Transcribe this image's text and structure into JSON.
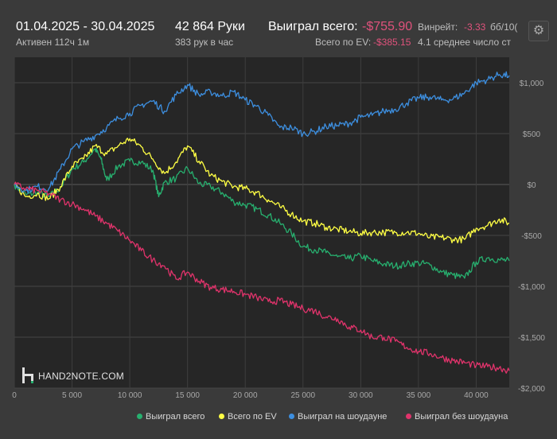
{
  "header": {
    "date_range": "01.04.2025 - 30.04.2025",
    "active": "Активен 112ч 1м",
    "hands": "42 864 Руки",
    "hands_per_hour": "383 рук в час",
    "won_total_label": "Выиграл всего:",
    "won_total_value": "-$755.90",
    "ev_label": "Всего по EV:",
    "ev_value": "-$385.15",
    "winrate_label": "Винрейт:",
    "winrate_value": "-3.33",
    "winrate_unit": "бб/10(",
    "avg_players": "4.1 среднее число ст"
  },
  "logo": {
    "text": "HAND2NOTE.COM"
  },
  "colors": {
    "won_total": "#27b06f",
    "ev": "#ffff44",
    "showdown": "#3d8fe0",
    "non_showdown": "#e0336b",
    "negative_text": "#e0527c"
  },
  "chart_data": {
    "type": "line",
    "xlim": [
      0,
      42864
    ],
    "ylim": [
      -2000,
      1250
    ],
    "x_ticks": [
      0,
      5000,
      10000,
      15000,
      20000,
      25000,
      30000,
      35000,
      40000
    ],
    "x_tick_labels": [
      "0",
      "5 000",
      "10 000",
      "15 000",
      "20 000",
      "25 000",
      "30 000",
      "35 000",
      "40 000"
    ],
    "y_ticks": [
      1000,
      500,
      0,
      -500,
      -1000,
      -1500,
      -2000
    ],
    "y_tick_labels": [
      "$1,000",
      "$500",
      "$0",
      "-$500",
      "-$1,000",
      "-$1,500",
      "-$2,000"
    ],
    "grid": true,
    "legend_position": "bottom",
    "series": [
      {
        "name": "Выиграл всего",
        "color": "#27b06f",
        "x": [
          0,
          1000,
          2000,
          3000,
          4000,
          5000,
          6000,
          7000,
          7500,
          8000,
          9000,
          10000,
          11000,
          12000,
          12500,
          13000,
          14000,
          15000,
          16000,
          17000,
          18000,
          19000,
          20000,
          21000,
          22000,
          23000,
          24000,
          25000,
          26000,
          27000,
          28000,
          29000,
          30000,
          31000,
          32000,
          33000,
          34000,
          35000,
          36000,
          37000,
          38000,
          39000,
          40000,
          41000,
          42000,
          42864
        ],
        "y": [
          0,
          -100,
          -80,
          -120,
          -30,
          150,
          220,
          350,
          250,
          40,
          180,
          230,
          220,
          140,
          -120,
          20,
          60,
          160,
          10,
          -20,
          -80,
          -170,
          -200,
          -240,
          -300,
          -380,
          -480,
          -610,
          -640,
          -670,
          -710,
          -730,
          -700,
          -750,
          -780,
          -800,
          -780,
          -770,
          -790,
          -860,
          -890,
          -920,
          -760,
          -720,
          -740,
          -750
        ]
      },
      {
        "name": "Всего по EV",
        "color": "#ffff44",
        "x": [
          0,
          1000,
          2000,
          3000,
          4000,
          5000,
          6000,
          7000,
          8000,
          9000,
          10000,
          11000,
          12000,
          13000,
          14000,
          15000,
          16000,
          17000,
          18000,
          19000,
          20000,
          21000,
          22000,
          23000,
          24000,
          25000,
          26000,
          27000,
          28000,
          29000,
          30000,
          31000,
          32000,
          33000,
          34000,
          35000,
          36000,
          37000,
          38000,
          39000,
          40000,
          41000,
          42000,
          42864
        ],
        "y": [
          0,
          -120,
          -90,
          -140,
          -20,
          180,
          250,
          380,
          300,
          380,
          450,
          370,
          250,
          110,
          220,
          380,
          230,
          90,
          30,
          -20,
          -40,
          -80,
          -150,
          -220,
          -290,
          -360,
          -380,
          -420,
          -440,
          -460,
          -480,
          -470,
          -470,
          -470,
          -470,
          -480,
          -520,
          -520,
          -540,
          -540,
          -430,
          -400,
          -340,
          -380
        ]
      },
      {
        "name": "Выиграл на шоудауне",
        "color": "#3d8fe0",
        "x": [
          0,
          1000,
          2000,
          3000,
          4000,
          5000,
          6000,
          7000,
          8000,
          9000,
          10000,
          11000,
          12000,
          13000,
          14000,
          15000,
          16000,
          17000,
          18000,
          19000,
          20000,
          21000,
          22000,
          23000,
          24000,
          25000,
          26000,
          27000,
          28000,
          29000,
          30000,
          31000,
          32000,
          33000,
          34000,
          35000,
          36000,
          37000,
          38000,
          39000,
          40000,
          41000,
          42000,
          42864
        ],
        "y": [
          0,
          -60,
          -20,
          -40,
          150,
          350,
          420,
          480,
          560,
          650,
          700,
          780,
          820,
          720,
          880,
          980,
          880,
          910,
          870,
          910,
          830,
          770,
          680,
          560,
          560,
          500,
          520,
          570,
          580,
          600,
          660,
          680,
          720,
          740,
          800,
          850,
          860,
          830,
          840,
          900,
          1000,
          1030,
          1080,
          1070
        ]
      },
      {
        "name": "Выиграл без шоудауна",
        "color": "#e0336b",
        "x": [
          0,
          1000,
          2000,
          3000,
          4000,
          5000,
          6000,
          7000,
          8000,
          9000,
          10000,
          11000,
          12000,
          13000,
          14000,
          15000,
          16000,
          17000,
          18000,
          19000,
          20000,
          21000,
          22000,
          23000,
          24000,
          25000,
          26000,
          27000,
          28000,
          29000,
          30000,
          31000,
          32000,
          33000,
          34000,
          35000,
          36000,
          37000,
          38000,
          39000,
          40000,
          41000,
          42000,
          42864
        ],
        "y": [
          0,
          -40,
          -60,
          -90,
          -150,
          -190,
          -240,
          -310,
          -380,
          -460,
          -550,
          -650,
          -740,
          -800,
          -930,
          -860,
          -950,
          -1010,
          -1030,
          -1050,
          -1080,
          -1110,
          -1150,
          -1140,
          -1180,
          -1220,
          -1240,
          -1300,
          -1320,
          -1400,
          -1430,
          -1500,
          -1500,
          -1540,
          -1600,
          -1640,
          -1660,
          -1700,
          -1730,
          -1750,
          -1780,
          -1790,
          -1800,
          -1830
        ]
      }
    ]
  }
}
